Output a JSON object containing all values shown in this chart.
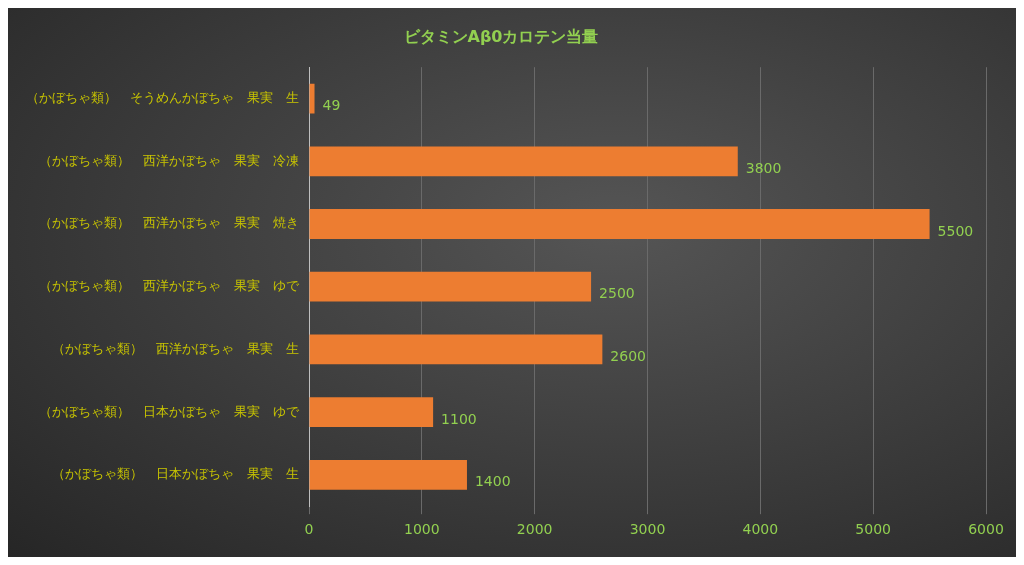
{
  "chart_data": {
    "type": "bar",
    "orientation": "horizontal",
    "title": "ビタミンAβ0カロテン当量",
    "categories": [
      "（かぼちゃ類）　そうめんかぼちゃ　果実　生",
      "（かぼちゃ類）　西洋かぼちゃ　果実　冷凍",
      "（かぼちゃ類）　西洋かぼちゃ　果実　焼き",
      "（かぼちゃ類）　西洋かぼちゃ　果実　ゆで",
      "（かぼちゃ類）　西洋かぼちゃ　果実　生",
      "（かぼちゃ類）　日本かぼちゃ　果実　ゆで",
      "（かぼちゃ類）　日本かぼちゃ　果実　生"
    ],
    "values": [
      49,
      3800,
      5500,
      2500,
      2600,
      1100,
      1400
    ],
    "color": "#ed7d31",
    "xlim": [
      0,
      6000
    ],
    "xticks": [
      0,
      1000,
      2000,
      3000,
      4000,
      5000,
      6000
    ],
    "grid": "x",
    "data_labels": true,
    "legend": false
  }
}
